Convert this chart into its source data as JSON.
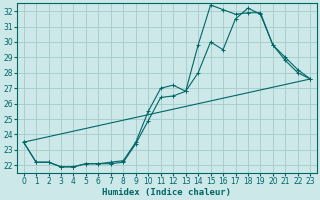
{
  "xlabel": "Humidex (Indice chaleur)",
  "bg_color": "#cde8e8",
  "line_color": "#006666",
  "grid_color": "#b8d8d8",
  "xlim": [
    -0.5,
    23.5
  ],
  "ylim": [
    21.5,
    32.5
  ],
  "xticks": [
    0,
    1,
    2,
    3,
    4,
    5,
    6,
    7,
    8,
    9,
    10,
    11,
    12,
    13,
    14,
    15,
    16,
    17,
    18,
    19,
    20,
    21,
    22,
    23
  ],
  "yticks": [
    22,
    23,
    24,
    25,
    26,
    27,
    28,
    29,
    30,
    31,
    32
  ],
  "line1_x": [
    0,
    1,
    2,
    3,
    4,
    5,
    6,
    7,
    8,
    9,
    10,
    11,
    12,
    13,
    14,
    15,
    16,
    17,
    18,
    19,
    20,
    21,
    22,
    23
  ],
  "line1_y": [
    23.5,
    22.2,
    22.2,
    21.9,
    21.9,
    22.1,
    22.1,
    22.1,
    22.2,
    23.4,
    24.9,
    26.4,
    26.5,
    26.8,
    29.8,
    32.4,
    32.1,
    31.8,
    31.9,
    31.9,
    29.8,
    29.0,
    28.2,
    27.6
  ],
  "line2_x": [
    0,
    1,
    2,
    3,
    4,
    5,
    6,
    7,
    8,
    9,
    10,
    11,
    12,
    13,
    14,
    15,
    16,
    17,
    18,
    19,
    20,
    21,
    22,
    23
  ],
  "line2_y": [
    23.5,
    22.2,
    22.2,
    21.9,
    21.9,
    22.1,
    22.1,
    22.2,
    22.3,
    23.5,
    25.5,
    27.0,
    27.2,
    26.8,
    28.0,
    30.0,
    29.5,
    31.5,
    32.2,
    31.8,
    29.8,
    28.8,
    28.0,
    27.6
  ],
  "line3_x": [
    0,
    23
  ],
  "line3_y": [
    23.5,
    27.6
  ]
}
